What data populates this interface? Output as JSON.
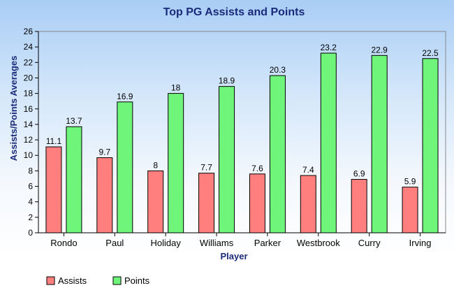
{
  "chart_data": {
    "type": "bar",
    "title": "Top PG Assists and Points",
    "xlabel": "Player",
    "ylabel": "Assists/Points Averages",
    "ylim": [
      0,
      26
    ],
    "ytick_step": 2,
    "grid": false,
    "legend": "bottom-left",
    "categories": [
      "Rondo",
      "Paul",
      "Holiday",
      "Williams",
      "Parker",
      "Westbrook",
      "Curry",
      "Irving"
    ],
    "series": [
      {
        "name": "Assists",
        "color": "#ff7f7f",
        "values": [
          11.1,
          9.7,
          8,
          7.7,
          7.6,
          7.4,
          6.9,
          5.9
        ]
      },
      {
        "name": "Points",
        "color": "#6ef57a",
        "values": [
          13.7,
          16.9,
          18,
          18.9,
          20.3,
          23.2,
          22.9,
          22.5
        ]
      }
    ]
  }
}
